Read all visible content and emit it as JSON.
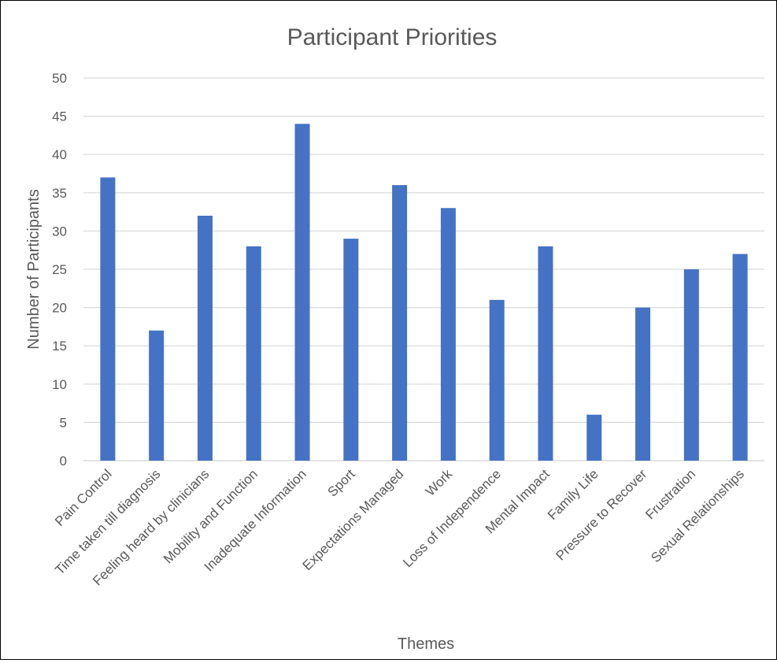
{
  "colors": {
    "bar": "#4472c4",
    "grid": "#d9d9d9",
    "text": "#595959",
    "border": "#000000"
  },
  "chart_data": {
    "type": "bar",
    "title": "Participant Priorities",
    "xlabel": "Themes",
    "ylabel": "Number of Participants",
    "ylim": [
      0,
      50
    ],
    "yticks": [
      0,
      5,
      10,
      15,
      20,
      25,
      30,
      35,
      40,
      45,
      50
    ],
    "grid": true,
    "legend": "none",
    "categories": [
      "Pain Control",
      "Time taken till diagnosis",
      "Feeling heard by clinicians",
      "Mobility and Function",
      "Inadequate Information",
      "Sport",
      "Expectations Managed",
      "Work",
      "Loss of Independence",
      "Mental Impact",
      "Family Life",
      "Pressure to Recover",
      "Frustration",
      "Sexual Relationships"
    ],
    "values": [
      37,
      17,
      32,
      28,
      44,
      29,
      36,
      33,
      21,
      28,
      6,
      20,
      25,
      27
    ]
  }
}
